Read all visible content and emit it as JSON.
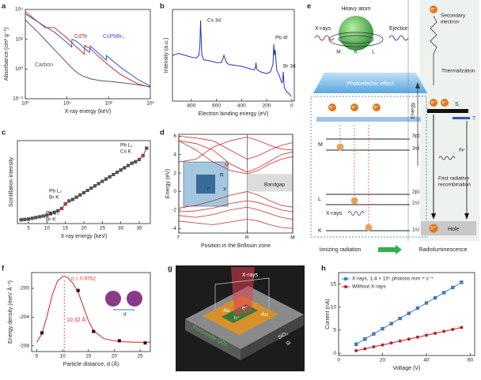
{
  "chart_data": [
    {
      "label": "a",
      "type": "line",
      "xlabel": "X-ray energy (keV)",
      "ylabel": "Absorbance (cm² g⁻¹)",
      "xscale": "log",
      "yscale": "log",
      "xlim": [
        1,
        1000
      ],
      "ylim": [
        0.01,
        10000
      ],
      "xticks": [
        {
          "value": 1,
          "label": "10⁰"
        },
        {
          "value": 10,
          "label": "10¹"
        },
        {
          "value": 100,
          "label": "10²"
        },
        {
          "value": 1000,
          "label": "10³"
        }
      ],
      "yticks": [
        {
          "value": 0.01,
          "label": "10⁻²"
        },
        {
          "value": 1,
          "label": "10⁰"
        },
        {
          "value": 100,
          "label": "10²"
        },
        {
          "value": 10000,
          "label": "10⁴"
        }
      ],
      "legend": "inline",
      "x": [
        1,
        2,
        3,
        5,
        8,
        10,
        13,
        13.1,
        16,
        20,
        26,
        26.8,
        30,
        35,
        36,
        40,
        60,
        88,
        88.1,
        100,
        200,
        500,
        1000
      ],
      "series": [
        {
          "name": "Carbon",
          "color": "#555555",
          "values": [
            2000,
            300,
            90,
            20,
            5,
            2.5,
            1.2,
            1.2,
            0.7,
            0.45,
            0.3,
            0.3,
            0.27,
            0.23,
            0.22,
            0.21,
            0.17,
            0.15,
            0.15,
            0.15,
            0.12,
            0.087,
            0.064
          ]
        },
        {
          "name": "CdTe",
          "color": "#d42a2a",
          "values": [
            7000,
            1500,
            600,
            600,
            200,
            120,
            60,
            60,
            35,
            20,
            10,
            40,
            30,
            25,
            24,
            18,
            6,
            2.5,
            2.5,
            1.8,
            0.4,
            0.1,
            0.06
          ]
        },
        {
          "name": "CsPbBr₃",
          "color": "#3355cc",
          "values": [
            5000,
            1500,
            700,
            300,
            100,
            60,
            30,
            100,
            80,
            50,
            25,
            24,
            18,
            13,
            35,
            28,
            10,
            4,
            8,
            6,
            1.2,
            0.2,
            0.07
          ]
        }
      ]
    },
    {
      "label": "b",
      "type": "line",
      "xlabel": "Electron binding energy (eV)",
      "ylabel": "Intensity (a.u.)",
      "xlim": [
        950,
        -20
      ],
      "ylim": [
        0,
        1
      ],
      "xticks": [
        800,
        600,
        400,
        200,
        0
      ],
      "x": [
        950,
        900,
        850,
        800,
        760,
        740,
        732,
        726,
        722,
        716,
        700,
        650,
        600,
        560,
        540,
        520,
        500,
        450,
        400,
        350,
        300,
        290,
        285,
        280,
        250,
        200,
        170,
        150,
        143,
        138,
        132,
        120,
        100,
        80,
        72,
        68,
        60,
        40,
        20,
        5
      ],
      "series": [
        {
          "color": "#2233bb",
          "values": [
            0.5,
            0.52,
            0.5,
            0.48,
            0.47,
            0.5,
            0.6,
            0.88,
            0.7,
            0.5,
            0.45,
            0.44,
            0.42,
            0.42,
            0.5,
            0.42,
            0.4,
            0.39,
            0.38,
            0.36,
            0.34,
            0.36,
            0.42,
            0.35,
            0.32,
            0.3,
            0.32,
            0.4,
            0.62,
            0.5,
            0.56,
            0.34,
            0.28,
            0.2,
            0.22,
            0.32,
            0.15,
            0.1,
            0.08,
            0.05
          ]
        }
      ],
      "annotations": [
        "Cs 3d",
        "Pb 4f",
        "Br 3d"
      ]
    },
    {
      "label": "c",
      "type": "line",
      "markers": "square",
      "xlabel": "X-ray energy (keV)",
      "ylabel": "Scintillation intensity",
      "xlim": [
        2,
        38
      ],
      "ylim": [
        0,
        1.1
      ],
      "xticks": [
        5,
        10,
        15,
        20,
        25,
        30,
        35
      ],
      "x": [
        3,
        4,
        5,
        6,
        7,
        8,
        9,
        10,
        11,
        12,
        13,
        14,
        15,
        16,
        17,
        18,
        19,
        20,
        21,
        22,
        23,
        24,
        25,
        26,
        27,
        28,
        29,
        30,
        31,
        32,
        33,
        34,
        35,
        36,
        37
      ],
      "series": [
        {
          "color": "#555555",
          "values": [
            0.05,
            0.055,
            0.06,
            0.07,
            0.08,
            0.09,
            0.1,
            0.11,
            0.13,
            0.15,
            0.17,
            0.2,
            0.26,
            0.3,
            0.32,
            0.35,
            0.38,
            0.41,
            0.44,
            0.47,
            0.5,
            0.53,
            0.56,
            0.59,
            0.62,
            0.65,
            0.68,
            0.71,
            0.74,
            0.77,
            0.8,
            0.82,
            0.85,
            0.9,
            1.0
          ]
        }
      ],
      "point_colors": [
        "#555555",
        "#555555",
        "#555555",
        "#555555",
        "#555555",
        "#555555",
        "#555555",
        "#555555",
        "#555555",
        "#555555",
        "#555555",
        "#d42a2a",
        "#d42a2a",
        "#555555",
        "#555555",
        "#555555",
        "#555555",
        "#555555",
        "#555555",
        "#555555",
        "#555555",
        "#555555",
        "#555555",
        "#555555",
        "#555555",
        "#555555",
        "#555555",
        "#555555",
        "#555555",
        "#555555",
        "#555555",
        "#555555",
        "#555555",
        "#d42a2a",
        "#555555"
      ],
      "annotations": [
        "Pb L₃",
        "Br K",
        "Pb L₂",
        "Br K",
        "Pb L₁",
        "Cs K"
      ]
    },
    {
      "label": "d",
      "type": "line",
      "xlabel": "Position in the Brillouin zone",
      "ylabel": "Energy (eV)",
      "xlim": [
        0,
        1
      ],
      "ylim": [
        -4.5,
        6.2
      ],
      "xgrid": true,
      "xticks": [
        {
          "value": 0,
          "label": "Γ"
        },
        {
          "value": 0.6,
          "label": "R"
        },
        {
          "value": 1,
          "label": "M"
        }
      ],
      "yticks": [
        -4,
        -2,
        0,
        2,
        4,
        6
      ],
      "x": [
        0,
        0.15,
        0.3,
        0.45,
        0.6,
        0.7,
        0.8,
        0.9,
        1.0
      ],
      "series": [
        {
          "color": "#d42a2a",
          "values": [
            5.5,
            4.5,
            3.2,
            2.3,
            1.9,
            2.3,
            3,
            3.5,
            3.8
          ]
        },
        {
          "color": "#d42a2a",
          "values": [
            5.5,
            5.2,
            4.5,
            3,
            2.1,
            2.6,
            3.3,
            4,
            4.3
          ]
        },
        {
          "color": "#d42a2a",
          "values": [
            6,
            5.8,
            5.5,
            4.5,
            3.5,
            3.9,
            4.5,
            5,
            5.3
          ]
        },
        {
          "color": "#d42a2a",
          "values": [
            3.2,
            3.5,
            4.8,
            5.5,
            5.9,
            5.5,
            5,
            4.6,
            4.5
          ]
        },
        {
          "color": "#d42a2a",
          "values": [
            -1.8,
            -1.5,
            -1,
            -0.4,
            0,
            -0.4,
            -1,
            -1.5,
            -1.7
          ]
        },
        {
          "color": "#d42a2a",
          "values": [
            -2.2,
            -2.1,
            -1.8,
            -1.3,
            -1,
            -1.2,
            -1.6,
            -2,
            -2.2
          ]
        },
        {
          "color": "#d42a2a",
          "values": [
            -2.6,
            -2.8,
            -2.5,
            -2,
            -1.7,
            -2,
            -2.4,
            -2.8,
            -3
          ]
        },
        {
          "color": "#d42a2a",
          "values": [
            -3.2,
            -3.4,
            -3.6,
            -3.3,
            -3,
            -3.2,
            -3.6,
            -3.9,
            -4
          ]
        }
      ],
      "annotations": [
        "Bandgap",
        "M",
        "R",
        "X",
        "Γ"
      ]
    },
    {
      "label": "f",
      "type": "scatter",
      "marker": "square",
      "xlabel": "Particle distance, d (Å)",
      "ylabel": "Energy density (meV Å⁻³)",
      "xlim": [
        4,
        27
      ],
      "ylim": [
        -208.8,
        -197.8
      ],
      "xticks": [
        5,
        10,
        15,
        20,
        25
      ],
      "yticks": [
        -200,
        -204,
        -208
      ],
      "x": [
        6,
        13,
        16,
        21,
        26
      ],
      "series": [
        {
          "color": "#3a0a0a",
          "values": [
            -206.2,
            -200.3,
            -206,
            -207.3,
            -207.6
          ]
        }
      ],
      "fit": {
        "color": "#e03030",
        "x": [
          5,
          6,
          7,
          8,
          9,
          10,
          10.32,
          11,
          12,
          13,
          14,
          15,
          16,
          18,
          20,
          22,
          24,
          26,
          27
        ],
        "values": [
          -207.5,
          -206.3,
          -203.8,
          -200.9,
          -199,
          -198.35,
          -198.3,
          -198.5,
          -199.3,
          -200.5,
          -202.5,
          -204.5,
          -205.9,
          -207,
          -207.3,
          -207.45,
          -207.5,
          -207.5,
          -207.5
        ]
      },
      "annotations": [
        "η = 0.9752",
        {
          "value": 10.32,
          "label": "10.32 Å"
        },
        "d"
      ]
    },
    {
      "label": "h",
      "type": "line",
      "markers": true,
      "xlabel": "Voltage (V)",
      "ylabel": "Current (nA)",
      "xlim": [
        0,
        62
      ],
      "ylim": [
        -0.5,
        17.5
      ],
      "xticks": [
        0,
        20,
        40,
        60
      ],
      "yticks": [
        0,
        5,
        10,
        15
      ],
      "legend": "upper left",
      "x": [
        8,
        12,
        16,
        20,
        24,
        28,
        32,
        36,
        40,
        44,
        48,
        52,
        56
      ],
      "series": [
        {
          "name": "X-rays, 1.4 × 10⁷ photons mm⁻² s⁻¹",
          "color": "#3a7fd5",
          "marker": "square",
          "values": [
            1.94,
            3.06,
            4.18,
            5.3,
            6.42,
            7.54,
            8.66,
            9.78,
            10.9,
            12.02,
            13.14,
            14.26,
            15.38
          ]
        },
        {
          "name": "Without X-rays",
          "color": "#c0202a",
          "marker": "circle",
          "values": [
            0.54,
            0.96,
            1.38,
            1.8,
            2.22,
            2.64,
            3.06,
            3.48,
            3.9,
            4.32,
            4.74,
            5.16,
            5.58
          ]
        }
      ]
    }
  ],
  "diagrams": {
    "e": {
      "label": "e",
      "heavy_atom": "Heavy atom",
      "xrays_in": "X-rays",
      "ejection": "Ejection",
      "atom_shells": [
        "M",
        "L",
        "K"
      ],
      "photoelectric": "Photoelectric effect",
      "electron": "e⁻",
      "levels": [
        {
          "shell": "M",
          "orbitals": [
            "3p⟩",
            "3s⟩"
          ]
        },
        {
          "shell": "L",
          "orbitals": [
            "2p⟩",
            "2s⟩"
          ]
        },
        {
          "shell": "K",
          "orbitals": [
            "1s⟩"
          ]
        }
      ],
      "xrays_low": "X-rays",
      "ionizing": "Ionizing radiation",
      "radioluminescence": "Radioluminescence",
      "secondary": [
        "Secondary",
        "electron"
      ],
      "thermalization": "Thermalization",
      "energy": "Energy",
      "singlet": "S",
      "triplet": "T",
      "photon": "hν",
      "recombination": [
        "Fast radiative",
        "recombination"
      ],
      "hole_symbol": "h⁺",
      "hole": "Hole"
    },
    "g": {
      "label": "g",
      "xrays": "X-rays",
      "electrode": "Au",
      "electron": "e⁻",
      "hole": "h⁺",
      "qds": "Perovskite QDs",
      "oxide": "SiO₂",
      "substrate": "Si"
    }
  }
}
